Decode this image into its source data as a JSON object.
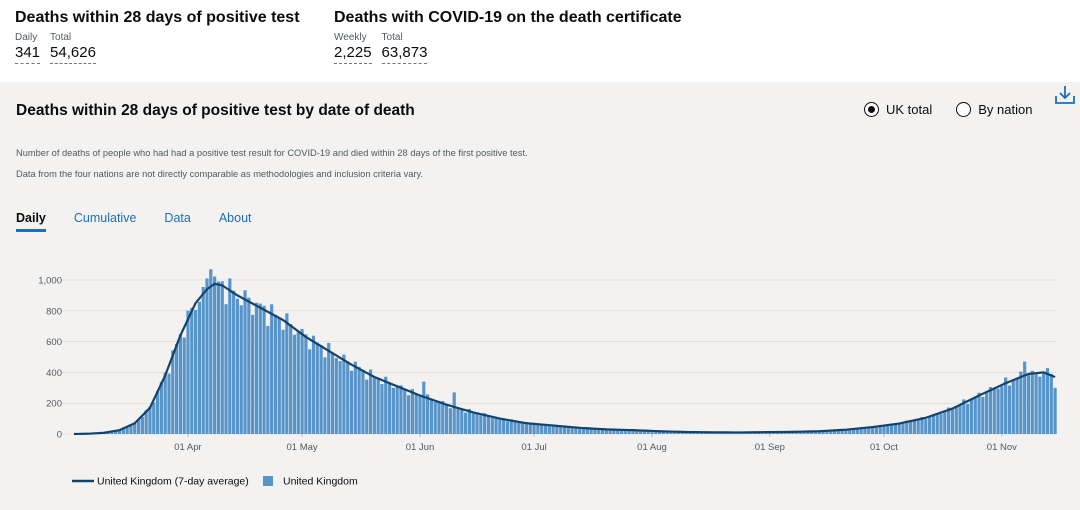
{
  "summary": {
    "left": {
      "title": "Deaths within 28 days of positive test",
      "metrics": [
        {
          "label": "Daily",
          "value": "341"
        },
        {
          "label": "Total",
          "value": "54,626"
        }
      ]
    },
    "right": {
      "title": "Deaths with COVID-19 on the death certificate",
      "metrics": [
        {
          "label": "Weekly",
          "value": "2,225"
        },
        {
          "label": "Total",
          "value": "63,873"
        }
      ]
    }
  },
  "card": {
    "title": "Deaths within 28 days of positive test by date of death",
    "radios": [
      {
        "label": "UK total",
        "selected": true
      },
      {
        "label": "By nation",
        "selected": false
      }
    ],
    "description": "Number of deaths of people who had had a positive test result for COVID-19 and died within 28 days of the first positive test. Data from the four nations are not directly comparable as methodologies and inclusion criteria vary.",
    "tabs": [
      {
        "label": "Daily",
        "active": true
      },
      {
        "label": "Cumulative",
        "active": false
      },
      {
        "label": "Data",
        "active": false
      },
      {
        "label": "About",
        "active": false
      }
    ],
    "download_icon": "download-icon"
  },
  "colors": {
    "bar": "#5694ca",
    "line": "#12436d",
    "link": "#1d70b8",
    "background": "#f3f2f1"
  },
  "chart_data": {
    "type": "bar",
    "x_start": "2020-03-02",
    "x_end": "2020-11-15",
    "xticks": [
      "01 Apr",
      "01 May",
      "01 Jun",
      "01 Jul",
      "01 Aug",
      "01 Sep",
      "01 Oct",
      "01 Nov"
    ],
    "yticks": [
      "0",
      "200",
      "400",
      "600",
      "800",
      "1,000"
    ],
    "ylim": [
      0,
      1100
    ],
    "grid": true,
    "legend_position": "bottom-left",
    "series": [
      {
        "name": "United Kingdom (7-day average)",
        "type": "line"
      },
      {
        "name": "United Kingdom",
        "type": "bar"
      }
    ],
    "anchors": [
      [
        "2020-03-02",
        0
      ],
      [
        "2020-03-06",
        2
      ],
      [
        "2020-03-10",
        8
      ],
      [
        "2020-03-14",
        25
      ],
      [
        "2020-03-18",
        70
      ],
      [
        "2020-03-22",
        170
      ],
      [
        "2020-03-26",
        380
      ],
      [
        "2020-03-30",
        640
      ],
      [
        "2020-04-03",
        850
      ],
      [
        "2020-04-06",
        940
      ],
      [
        "2020-04-08",
        975
      ],
      [
        "2020-04-10",
        965
      ],
      [
        "2020-04-14",
        900
      ],
      [
        "2020-04-20",
        820
      ],
      [
        "2020-04-26",
        740
      ],
      [
        "2020-05-02",
        630
      ],
      [
        "2020-05-08",
        540
      ],
      [
        "2020-05-14",
        450
      ],
      [
        "2020-05-20",
        370
      ],
      [
        "2020-05-26",
        310
      ],
      [
        "2020-06-01",
        250
      ],
      [
        "2020-06-08",
        190
      ],
      [
        "2020-06-15",
        140
      ],
      [
        "2020-06-22",
        100
      ],
      [
        "2020-06-29",
        70
      ],
      [
        "2020-07-06",
        55
      ],
      [
        "2020-07-13",
        40
      ],
      [
        "2020-07-20",
        30
      ],
      [
        "2020-07-27",
        25
      ],
      [
        "2020-08-03",
        18
      ],
      [
        "2020-08-10",
        13
      ],
      [
        "2020-08-17",
        11
      ],
      [
        "2020-08-24",
        10
      ],
      [
        "2020-08-31",
        12
      ],
      [
        "2020-09-07",
        14
      ],
      [
        "2020-09-14",
        18
      ],
      [
        "2020-09-21",
        28
      ],
      [
        "2020-09-28",
        45
      ],
      [
        "2020-10-05",
        68
      ],
      [
        "2020-10-12",
        105
      ],
      [
        "2020-10-19",
        165
      ],
      [
        "2020-10-26",
        250
      ],
      [
        "2020-11-02",
        330
      ],
      [
        "2020-11-08",
        390
      ],
      [
        "2020-11-12",
        400
      ],
      [
        "2020-11-15",
        370
      ]
    ],
    "spikes": [
      [
        "2020-04-07",
        1070
      ],
      [
        "2020-04-06",
        1010
      ],
      [
        "2020-04-09",
        990
      ],
      [
        "2020-05-15",
        470
      ],
      [
        "2020-06-02",
        340
      ],
      [
        "2020-06-10",
        270
      ],
      [
        "2020-11-07",
        470
      ],
      [
        "2020-11-10",
        400
      ],
      [
        "2020-11-14",
        390
      ],
      [
        "2020-11-15",
        300
      ]
    ]
  }
}
